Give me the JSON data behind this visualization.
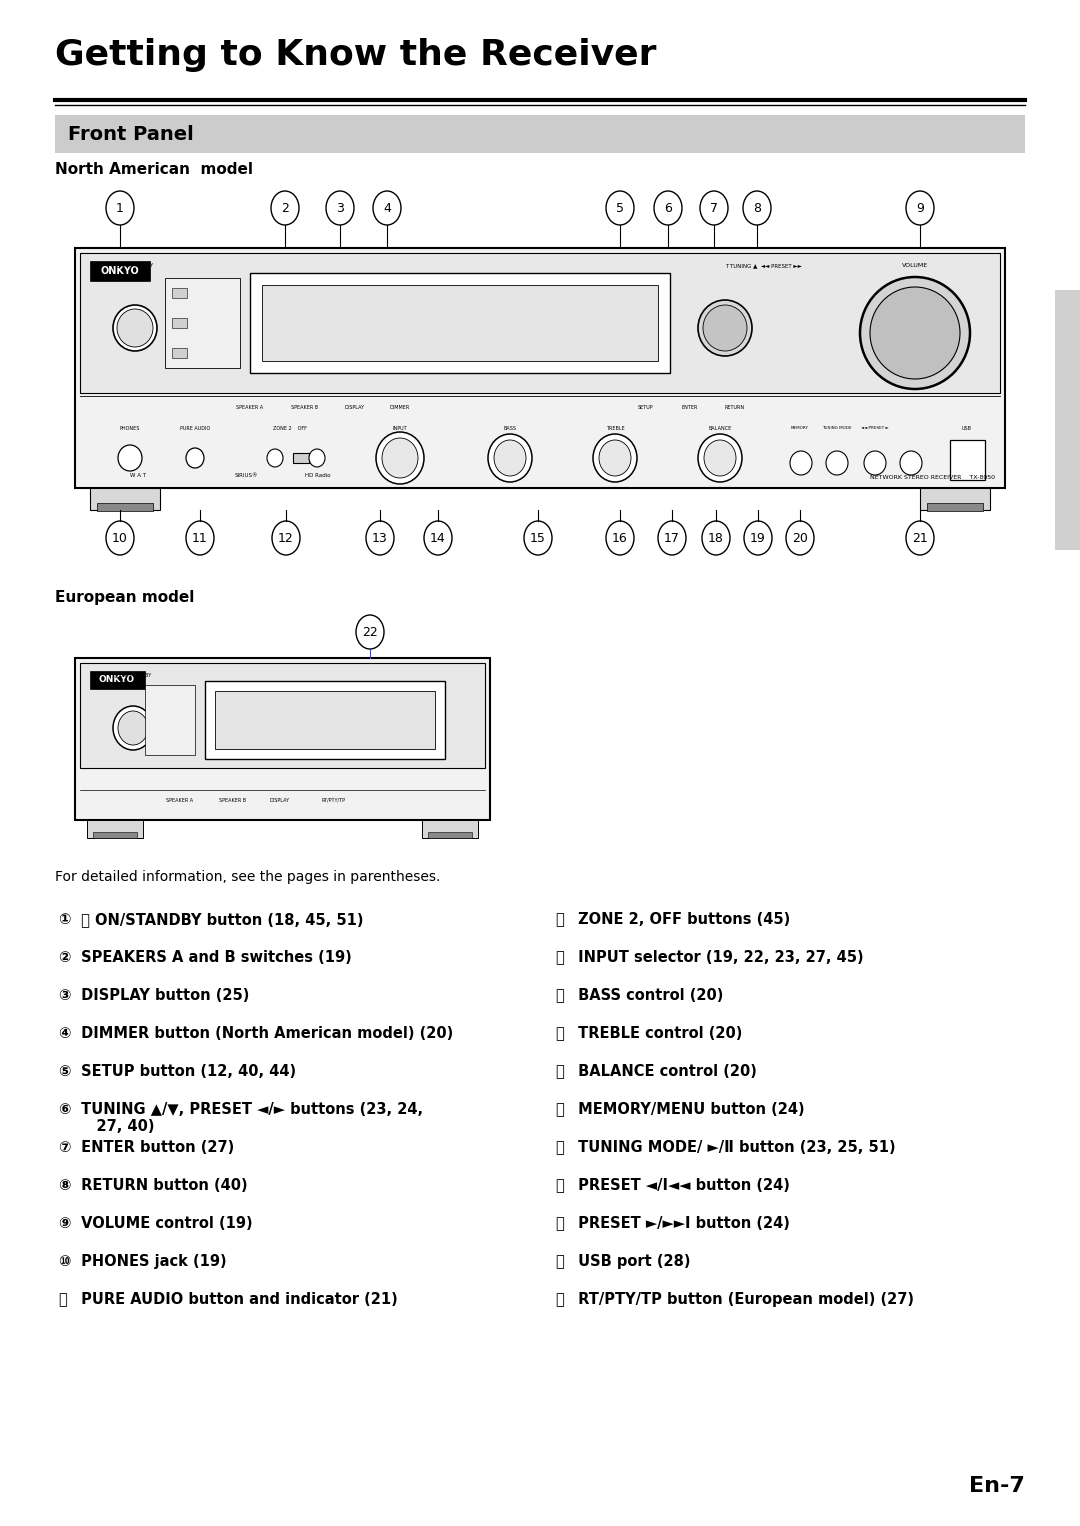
{
  "title": "Getting to Know the Receiver",
  "section_title": "Front Panel",
  "section_bg": "#cccccc",
  "north_american_label": "North American  model",
  "european_label": "European model",
  "intro_text": "For detailed information, see the pages in parentheses.",
  "left_items": [
    [
      "①",
      " ⏻ ON/STANDBY button (18, 45, 51)"
    ],
    [
      "②",
      " SPEAKERS A and B switches (19)"
    ],
    [
      "③",
      " DISPLAY button (25)"
    ],
    [
      "④",
      " DIMMER button (North American model) (20)"
    ],
    [
      "⑤",
      " SETUP button (12, 40, 44)"
    ],
    [
      "⑥",
      " TUNING ▲/▼, PRESET ◄/► buttons (23, 24,\n    27, 40)"
    ],
    [
      "⑦",
      " ENTER button (27)"
    ],
    [
      "⑧",
      " RETURN button (40)"
    ],
    [
      "⑨",
      " VOLUME control (19)"
    ],
    [
      "⑩",
      " PHONES jack (19)"
    ],
    [
      "⑪",
      " PURE AUDIO button and indicator (21)"
    ]
  ],
  "right_items": [
    [
      "⑫",
      " ZONE 2, OFF buttons (45)"
    ],
    [
      "⑬",
      " INPUT selector (19, 22, 23, 27, 45)"
    ],
    [
      "⑭",
      " BASS control (20)"
    ],
    [
      "⑮",
      " TREBLE control (20)"
    ],
    [
      "⑯",
      " BALANCE control (20)"
    ],
    [
      "⑰",
      " MEMORY/MENU button (24)"
    ],
    [
      "⑱",
      " TUNING MODE/ ►/Ⅱ button (23, 25, 51)"
    ],
    [
      "⑲",
      " PRESET ◄/I◄◄ button (24)"
    ],
    [
      "⑳",
      " PRESET ►/►►I button (24)"
    ],
    [
      "⑴",
      " USB port (28)"
    ],
    [
      "⑵",
      " RT/PTY/TP button (European model) (27)"
    ]
  ],
  "page_num": "En-7",
  "bg_color": "#ffffff",
  "text_color": "#000000"
}
